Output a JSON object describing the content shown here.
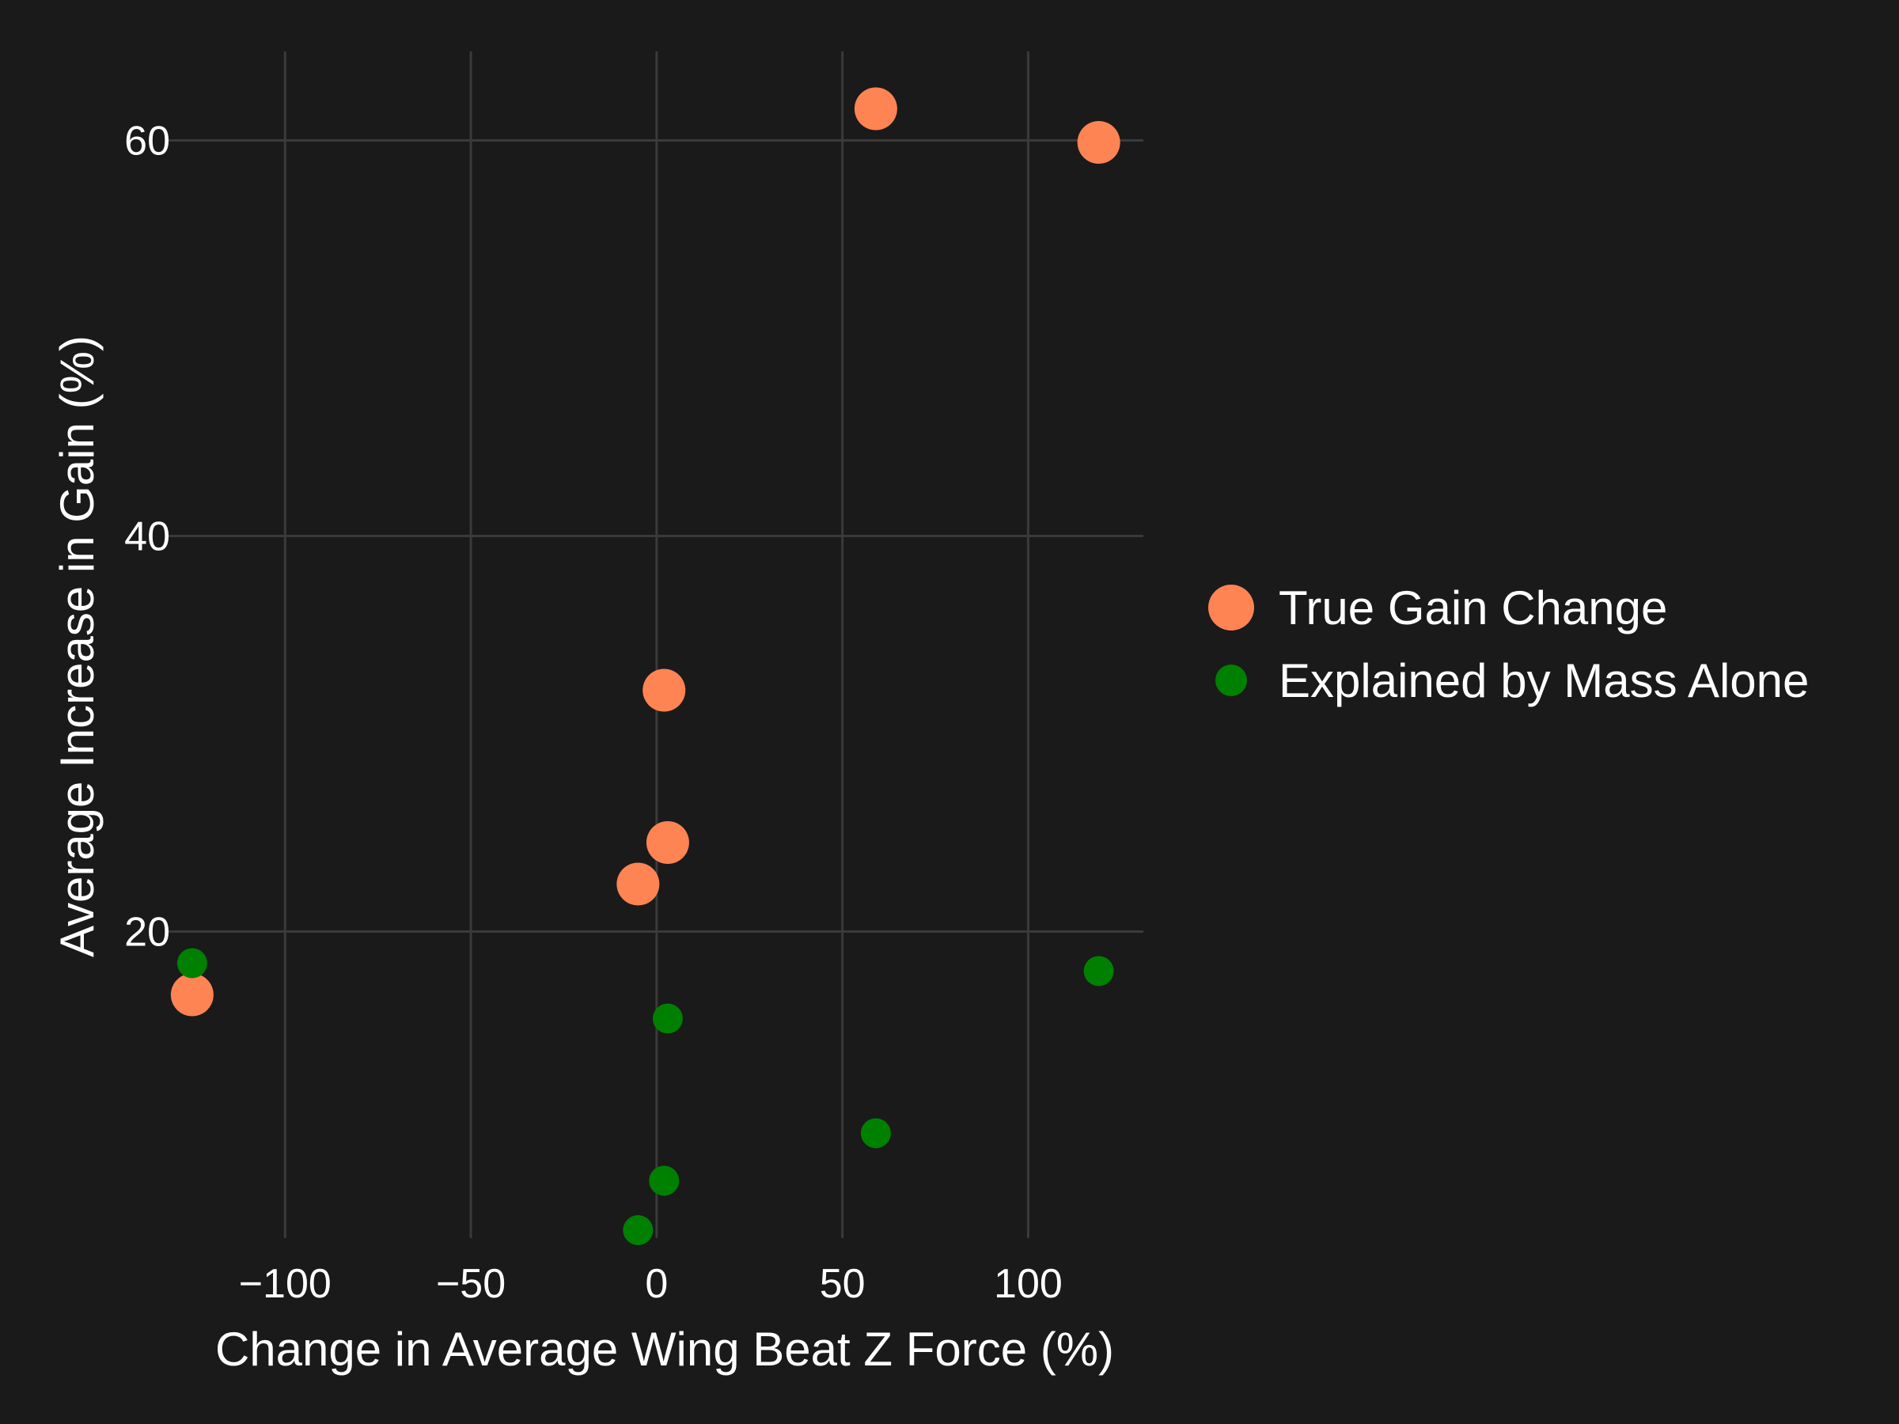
{
  "chart_data": {
    "type": "scatter",
    "xlabel": "Change in Average Wing Beat Z Force (%)",
    "ylabel": "Average Increase in Gain (%)",
    "xlim": [
      -132,
      131
    ],
    "ylim": [
      4.5,
      64.5
    ],
    "x_ticks": [
      -100,
      -50,
      0,
      50,
      100
    ],
    "x_tick_labels": [
      "−100",
      "−50",
      "0",
      "50",
      "100"
    ],
    "y_ticks": [
      20,
      40,
      60
    ],
    "y_tick_labels": [
      "20",
      "40",
      "60"
    ],
    "grid": true,
    "legend_position": "right",
    "series": [
      {
        "name": "True Gain Change",
        "color": "#ff8453",
        "marker": "large-circle",
        "points": [
          {
            "x": -125,
            "y": 16.8
          },
          {
            "x": -5,
            "y": 22.4
          },
          {
            "x": 2,
            "y": 32.2
          },
          {
            "x": 3,
            "y": 24.5
          },
          {
            "x": 59,
            "y": 61.6
          },
          {
            "x": 119,
            "y": 59.9
          }
        ]
      },
      {
        "name": "Explained by Mass Alone",
        "color": "#008000",
        "marker": "small-circle",
        "points": [
          {
            "x": -125,
            "y": 18.4
          },
          {
            "x": -5,
            "y": 4.9
          },
          {
            "x": 2,
            "y": 7.4
          },
          {
            "x": 3,
            "y": 15.6
          },
          {
            "x": 59,
            "y": 9.8
          },
          {
            "x": 119,
            "y": 18.0
          }
        ]
      }
    ]
  }
}
